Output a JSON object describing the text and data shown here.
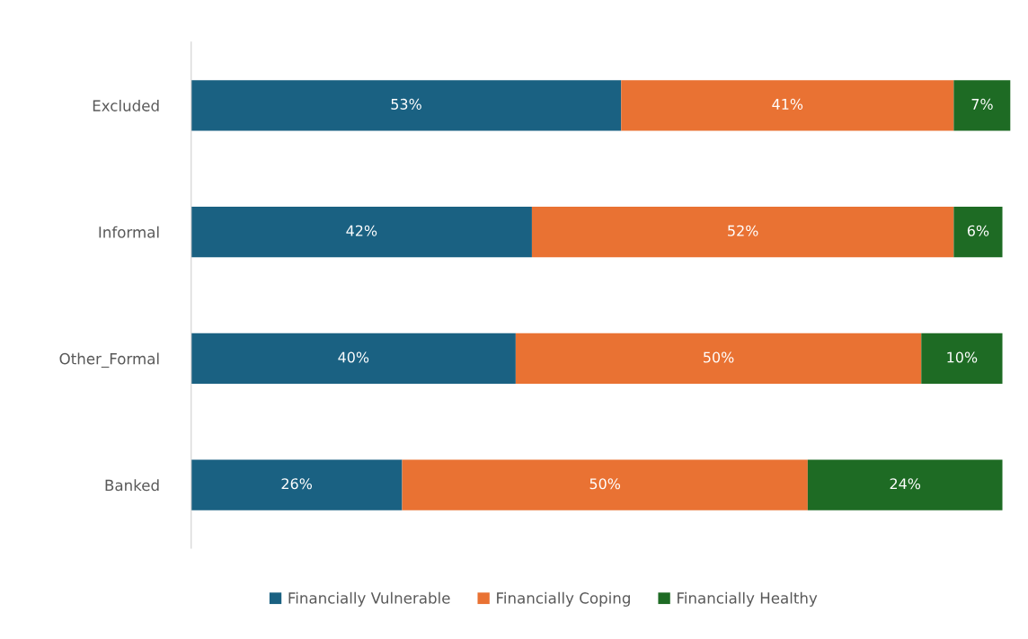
{
  "chart_data": {
    "type": "bar",
    "orientation": "horizontal",
    "stacked": true,
    "categories": [
      "Excluded",
      "Informal",
      "Other_Formal",
      "Banked"
    ],
    "series": [
      {
        "name": "Financially Vulnerable",
        "color": "#1a6182",
        "values": [
          53,
          42,
          40,
          26
        ],
        "value_labels": [
          "53%",
          "42%",
          "40%",
          "26%"
        ]
      },
      {
        "name": "Financially Coping",
        "color": "#e97233",
        "values": [
          41,
          52,
          50,
          50
        ],
        "value_labels": [
          "41%",
          "52%",
          "50%",
          "50%"
        ]
      },
      {
        "name": "Financially Healthy",
        "color": "#1e6b24",
        "values": [
          7,
          6,
          10,
          24
        ],
        "value_labels": [
          "7%",
          "6%",
          "10%",
          "24%"
        ]
      }
    ],
    "legend": "bottom",
    "grid": false
  }
}
